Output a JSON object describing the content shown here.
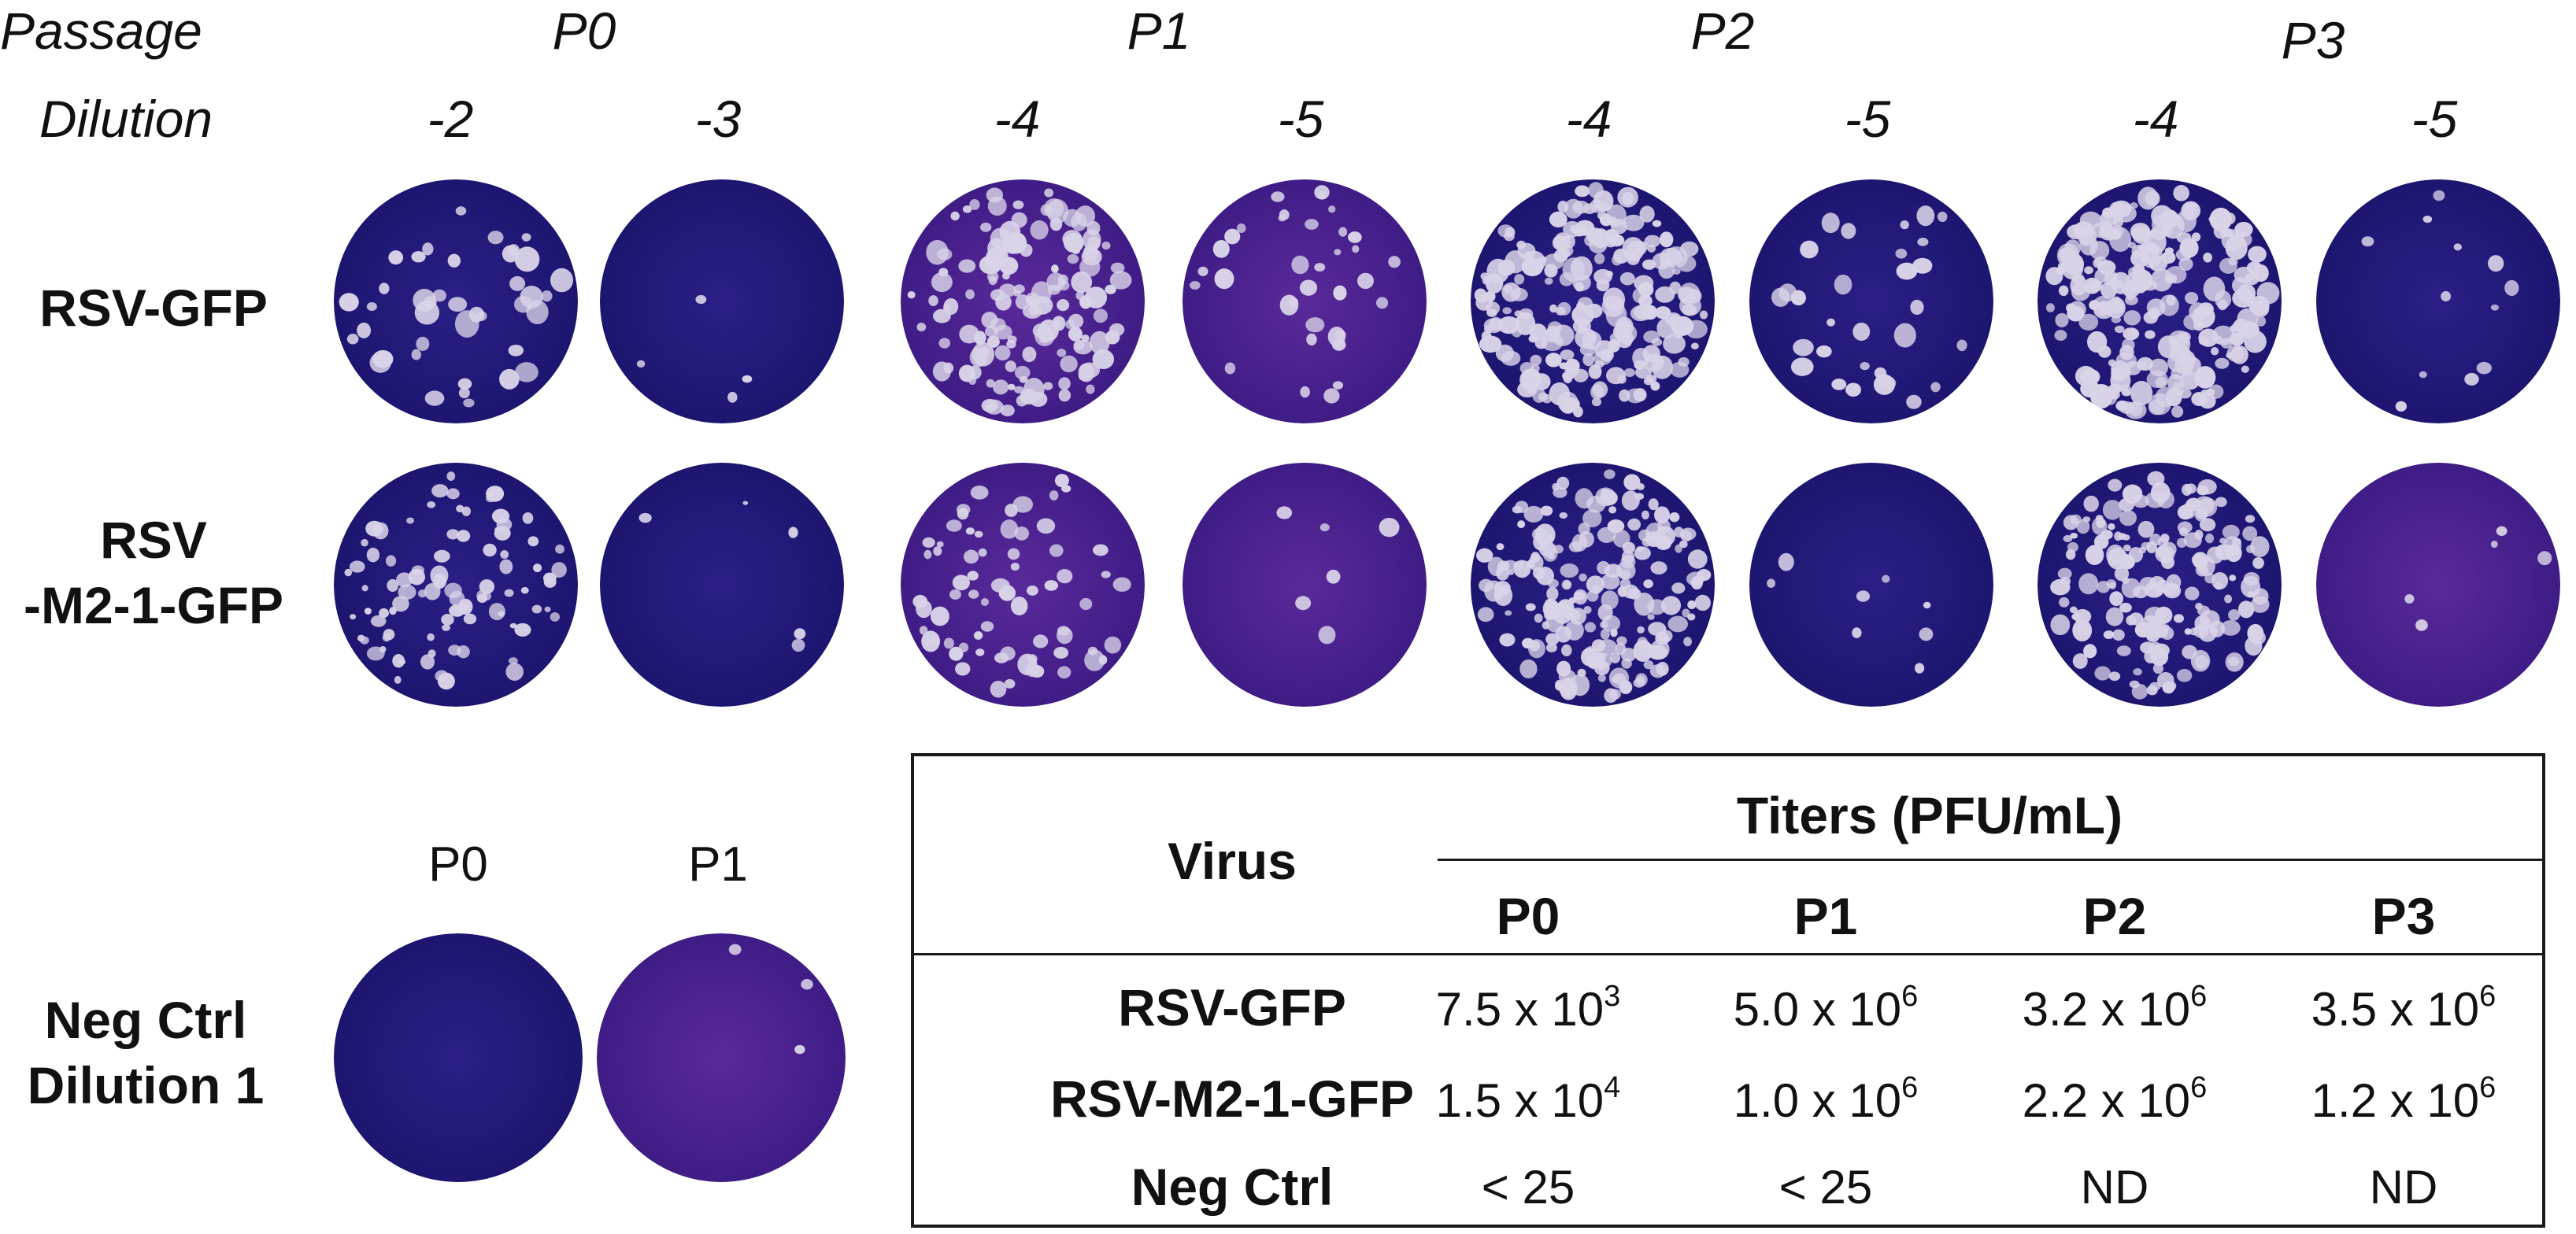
{
  "figure": {
    "passage_label": "Passage",
    "dilution_label": "Dilution",
    "passages": [
      "P0",
      "P1",
      "P2",
      "P3"
    ],
    "dilutions": [
      "-2",
      "-3",
      "-4",
      "-5",
      "-4",
      "-5",
      "-4",
      "-5"
    ],
    "rows": [
      {
        "label_line1": "RSV-GFP",
        "label_line2": ""
      },
      {
        "label_line1": "RSV",
        "label_line2": "-M2-1-GFP"
      }
    ],
    "neg_ctrl": {
      "label_line1": "Neg Ctrl",
      "label_line2": "Dilution 1",
      "passages": [
        "P0",
        "P1"
      ]
    },
    "plate_colors": {
      "dark_blue": "#2a1f86",
      "purple": "#5a2a9a",
      "plaque": "#d9d3e8"
    }
  },
  "table": {
    "virus_header": "Virus",
    "titers_header": "Titers (PFU/mL)",
    "columns": [
      "P0",
      "P1",
      "P2",
      "P3"
    ],
    "rows": [
      {
        "virus": "RSV-GFP",
        "cells": [
          {
            "base": "7.5 x 10",
            "exp": "3"
          },
          {
            "base": "5.0 x 10",
            "exp": "6"
          },
          {
            "base": "3.2 x 10",
            "exp": "6"
          },
          {
            "base": "3.5 x 10",
            "exp": "6"
          }
        ]
      },
      {
        "virus": "RSV-M2-1-GFP",
        "cells": [
          {
            "base": "1.5 x 10",
            "exp": "4"
          },
          {
            "base": "1.0 x 10",
            "exp": "6"
          },
          {
            "base": "2.2 x 10",
            "exp": "6"
          },
          {
            "base": "1.2 x 10",
            "exp": "6"
          }
        ]
      },
      {
        "virus": "Neg Ctrl",
        "cells": [
          {
            "base": "< 25",
            "exp": ""
          },
          {
            "base": "< 25",
            "exp": ""
          },
          {
            "base": "ND",
            "exp": ""
          },
          {
            "base": "ND",
            "exp": ""
          }
        ]
      }
    ]
  }
}
